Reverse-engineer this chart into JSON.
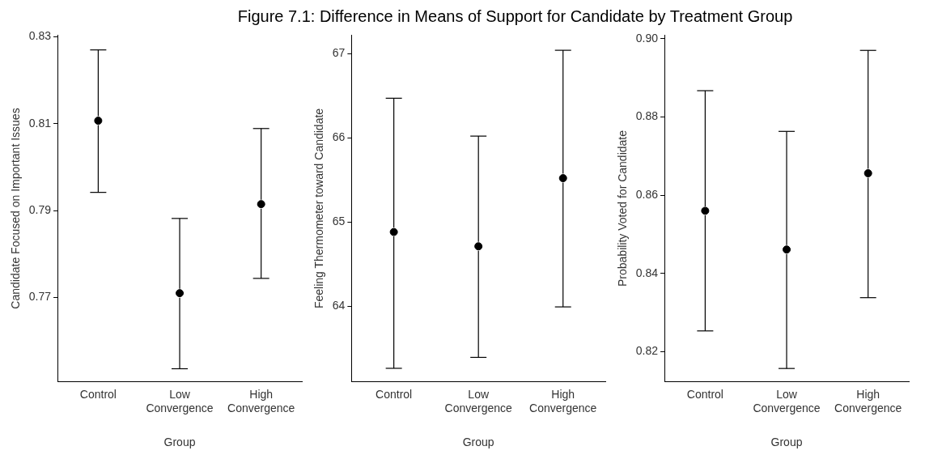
{
  "chart_data": [
    {
      "type": "scatter",
      "title": "Figure 7.1: Difference in Means of Support for Candidate by Treatment Group",
      "xlabel": "Group",
      "ylabel": "Candidate Focused on Important Issues",
      "categories": [
        "Control",
        "Low Convergence",
        "High Convergence"
      ],
      "values": [
        0.8107,
        0.771,
        0.7915
      ],
      "errors": [
        [
          0.7942,
          0.827
        ],
        [
          0.7536,
          0.7882
        ],
        [
          0.7744,
          0.8089
        ]
      ],
      "color": "#000000",
      "marker": "circle",
      "grid": false,
      "ylim": [
        0.7506,
        0.8304
      ],
      "yticks": [
        0.77,
        0.79,
        0.81,
        0.83
      ]
    },
    {
      "type": "scatter",
      "xlabel": "Group",
      "ylabel": "Feeling Thermometer toward Candidate",
      "categories": [
        "Control",
        "Low Convergence",
        "High Convergence"
      ],
      "values": [
        64.88,
        64.71,
        65.52
      ],
      "errors": [
        [
          63.26,
          66.47
        ],
        [
          63.39,
          66.02
        ],
        [
          63.99,
          67.04
        ]
      ],
      "color": "#000000",
      "marker": "circle",
      "grid": false,
      "ylim": [
        63.1,
        67.22
      ],
      "yticks": [
        64,
        65,
        66,
        67
      ]
    },
    {
      "type": "scatter",
      "xlabel": "Group",
      "ylabel": "Probability Voted for Candidate",
      "categories": [
        "Control",
        "Low Convergence",
        "High Convergence"
      ],
      "values": [
        0.856,
        0.8461,
        0.8656
      ],
      "errors": [
        [
          0.8253,
          0.8867
        ],
        [
          0.8157,
          0.8763
        ],
        [
          0.8338,
          0.897
        ]
      ],
      "color": "#000000",
      "marker": "circle",
      "grid": false,
      "ylim": [
        0.8123,
        0.9009
      ],
      "yticks": [
        {
          "value": 0.82,
          "label": "0.82"
        },
        {
          "value": 0.84,
          "label": "0.84"
        },
        {
          "value": 0.86,
          "label": "0.86"
        },
        {
          "value": 0.88,
          "label": "0.88"
        },
        {
          "value": 0.9,
          "label": "0.90"
        }
      ]
    }
  ]
}
